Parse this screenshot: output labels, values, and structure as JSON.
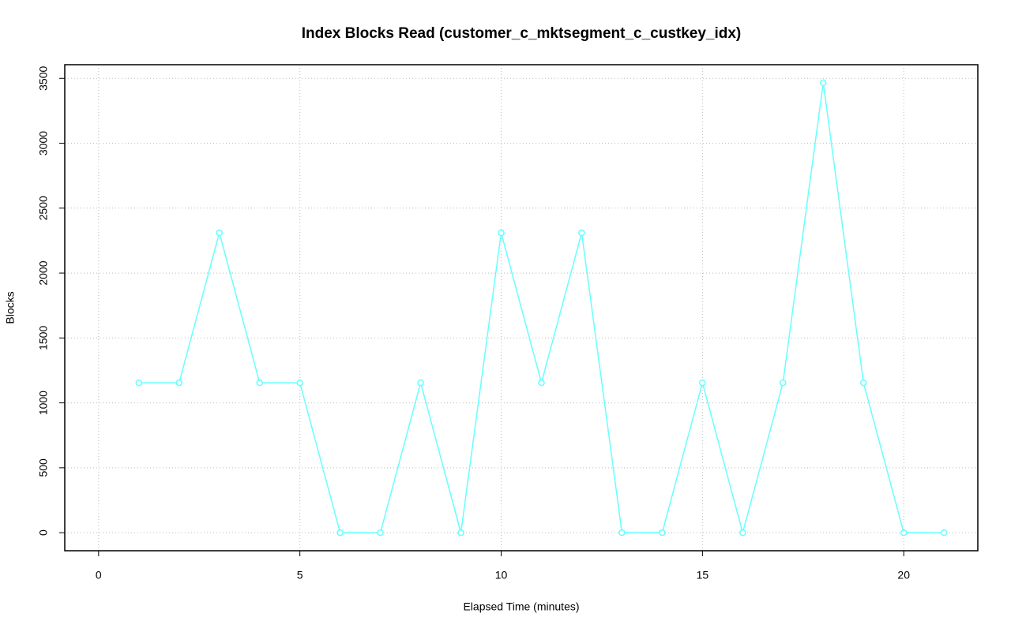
{
  "chart_data": {
    "type": "line",
    "title": "Index Blocks Read (customer_c_mktsegment_c_custkey_idx)",
    "x_label": "Elapsed Time (minutes)",
    "y_label": "Blocks",
    "x": [
      1,
      2,
      3,
      4,
      5,
      6,
      7,
      8,
      9,
      10,
      11,
      12,
      13,
      14,
      15,
      16,
      17,
      18,
      19,
      20,
      21
    ],
    "series": [
      {
        "name": "Blocks",
        "color": "#66ffff",
        "values": [
          1155,
          1155,
          2310,
          1155,
          1155,
          0,
          0,
          1155,
          0,
          2310,
          1155,
          2310,
          0,
          0,
          1155,
          0,
          1155,
          3466,
          1155,
          0,
          0
        ]
      }
    ],
    "xlim": [
      -0.84,
      21.84
    ],
    "xticks": [
      0,
      5,
      10,
      15,
      20
    ],
    "ylim": [
      -139,
      3605
    ],
    "yticks": [
      0,
      500,
      1000,
      1500,
      2000,
      2500,
      3000,
      3500
    ],
    "grid": true
  }
}
